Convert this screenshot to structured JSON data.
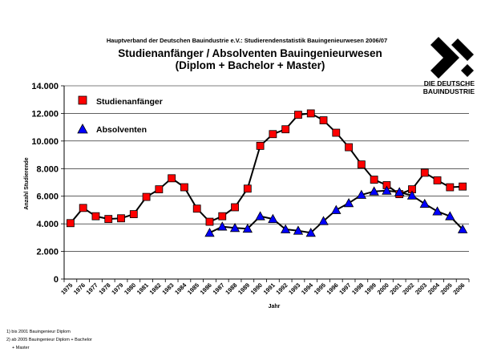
{
  "header": {
    "supertitle": "Hauptverband der Deutschen Bauindustrie e.V.: Studierendenstatistik Bauingenieurwesen 2006/07",
    "title_line1": "Studienanfänger / Absolventen Bauingenieurwesen",
    "title_line2": "(Diplom + Bachelor + Master)"
  },
  "logo": {
    "line1": "DIE DEUTSCHE",
    "line2": "BAUINDUSTRIE"
  },
  "footnotes": {
    "line1": "1) bis 2001 Bauingenieur Diplom",
    "line2": "2) ab 2005 Bauingenieur Diplom + Bachelor",
    "line3": "+ Master"
  },
  "chart_data": {
    "type": "line",
    "title": "Studienanfänger / Absolventen Bauingenieurwesen (Diplom + Bachelor + Master)",
    "xlabel": "Jahr",
    "ylabel": "Anzahl Studierende",
    "ylim": [
      0,
      14000
    ],
    "yticks": [
      0,
      2000,
      4000,
      6000,
      8000,
      10000,
      12000,
      14000
    ],
    "ytick_labels": [
      "0",
      "2.000",
      "4.000",
      "6.000",
      "8.000",
      "10.000",
      "12.000",
      "14.000"
    ],
    "x": [
      "1975",
      "1976",
      "1977",
      "1978",
      "1979",
      "1980",
      "1981",
      "1982",
      "1983",
      "1984",
      "1985",
      "1986",
      "1987",
      "1988",
      "1989",
      "1990",
      "1991",
      "1992",
      "1993",
      "1994",
      "1995",
      "1996",
      "1997",
      "1998",
      "1999",
      "2000",
      "2001",
      "2002",
      "2003",
      "2004",
      "2005",
      "2006"
    ],
    "grid": "horizontal",
    "legend_position": "top-left",
    "series": [
      {
        "name": "Studienanfänger",
        "marker": "square",
        "color": "#ff0000",
        "values": [
          4050,
          5150,
          4550,
          4350,
          4400,
          4700,
          5950,
          6500,
          7300,
          6650,
          5100,
          4150,
          4550,
          5200,
          6550,
          9650,
          10500,
          10850,
          11900,
          12000,
          11500,
          10600,
          9550,
          8300,
          7200,
          6800,
          6150,
          6500,
          7700,
          7150,
          6650,
          6700
        ]
      },
      {
        "name": "Absolventen",
        "marker": "triangle",
        "color": "#0000ff",
        "values": [
          null,
          null,
          null,
          null,
          null,
          null,
          null,
          null,
          null,
          null,
          null,
          3350,
          3800,
          3700,
          3650,
          4550,
          4350,
          3600,
          3500,
          3350,
          4200,
          5000,
          5500,
          6100,
          6350,
          6400,
          6300,
          6050,
          5450,
          4900,
          4550,
          3600
        ]
      }
    ]
  }
}
